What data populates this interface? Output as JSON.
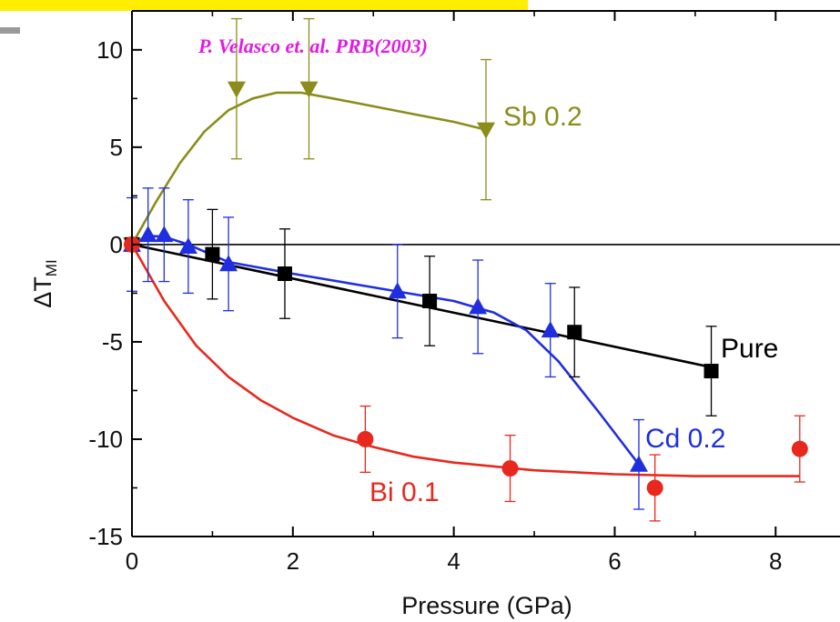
{
  "chart_data": {
    "type": "scatter",
    "citation": "P. Velasco et. al. PRB(2003)",
    "xlabel": "Pressure (GPa)",
    "ylabel_main": "ΔT",
    "ylabel_sub": "MI",
    "xlim": [
      0,
      8.8
    ],
    "ylim": [
      -15,
      12
    ],
    "xticks": [
      0,
      2,
      4,
      6,
      8
    ],
    "yticks": [
      10,
      5,
      0,
      -5,
      -10,
      -15
    ],
    "zero_line": true,
    "series": [
      {
        "name": "Sb 0.2",
        "color": "#8c8c1c",
        "marker": "triangle-down",
        "points": [
          {
            "x": 0.0,
            "y": 0.0,
            "err": 0
          },
          {
            "x": 1.3,
            "y": 8.0,
            "err": 3.6
          },
          {
            "x": 2.2,
            "y": 8.0,
            "err": 3.6
          },
          {
            "x": 4.4,
            "y": 5.9,
            "err": 3.6
          }
        ],
        "fit": [
          [
            0,
            0
          ],
          [
            0.3,
            2.2
          ],
          [
            0.6,
            4.2
          ],
          [
            0.9,
            5.8
          ],
          [
            1.2,
            6.9
          ],
          [
            1.5,
            7.5
          ],
          [
            1.8,
            7.8
          ],
          [
            2.1,
            7.8
          ],
          [
            2.5,
            7.5
          ],
          [
            3.0,
            7.1
          ],
          [
            3.5,
            6.7
          ],
          [
            4.0,
            6.3
          ],
          [
            4.4,
            5.9
          ]
        ]
      },
      {
        "name": "Pure",
        "color": "#000000",
        "marker": "square",
        "points": [
          {
            "x": 0.0,
            "y": 0.0,
            "err": 0
          },
          {
            "x": 1.0,
            "y": -0.5,
            "err": 2.3
          },
          {
            "x": 1.9,
            "y": -1.5,
            "err": 2.3
          },
          {
            "x": 3.7,
            "y": -2.9,
            "err": 2.3
          },
          {
            "x": 5.5,
            "y": -4.5,
            "err": 2.3
          },
          {
            "x": 7.2,
            "y": -6.5,
            "err": 2.3
          }
        ],
        "fit": [
          [
            0,
            0
          ],
          [
            7.2,
            -6.3
          ]
        ]
      },
      {
        "name": "Cd 0.2",
        "color": "#1f2fe0",
        "marker": "triangle-up",
        "points": [
          {
            "x": 0.0,
            "y": 0.0,
            "err": 2.4
          },
          {
            "x": 0.2,
            "y": 0.5,
            "err": 2.4
          },
          {
            "x": 0.4,
            "y": 0.5,
            "err": 2.4
          },
          {
            "x": 0.7,
            "y": -0.1,
            "err": 2.4
          },
          {
            "x": 1.2,
            "y": -1.0,
            "err": 2.4
          },
          {
            "x": 3.3,
            "y": -2.4,
            "err": 2.4
          },
          {
            "x": 4.3,
            "y": -3.2,
            "err": 2.4
          },
          {
            "x": 5.2,
            "y": -4.4,
            "err": 2.4
          },
          {
            "x": 6.3,
            "y": -11.3,
            "err": 2.3
          }
        ],
        "fit": [
          [
            0,
            0
          ],
          [
            0.2,
            0.45
          ],
          [
            0.4,
            0.4
          ],
          [
            0.7,
            0
          ],
          [
            1.2,
            -0.9
          ],
          [
            2.0,
            -1.5
          ],
          [
            3.0,
            -2.2
          ],
          [
            4.0,
            -2.9
          ],
          [
            4.5,
            -3.5
          ],
          [
            4.9,
            -4.4
          ],
          [
            5.3,
            -6.0
          ],
          [
            5.8,
            -8.6
          ],
          [
            6.3,
            -11.3
          ]
        ]
      },
      {
        "name": "Bi 0.1",
        "color": "#e8281c",
        "marker": "circle",
        "points": [
          {
            "x": 0.0,
            "y": 0.0,
            "err": 0
          },
          {
            "x": 2.9,
            "y": -10.0,
            "err": 1.7
          },
          {
            "x": 4.7,
            "y": -11.5,
            "err": 1.7
          },
          {
            "x": 6.5,
            "y": -12.5,
            "err": 1.7
          },
          {
            "x": 8.3,
            "y": -10.5,
            "err": 1.7
          }
        ],
        "fit": [
          [
            0,
            0
          ],
          [
            0.4,
            -2.9
          ],
          [
            0.8,
            -5.2
          ],
          [
            1.2,
            -6.8
          ],
          [
            1.6,
            -8.0
          ],
          [
            2.0,
            -8.9
          ],
          [
            2.5,
            -9.8
          ],
          [
            3.0,
            -10.4
          ],
          [
            3.5,
            -10.9
          ],
          [
            4.0,
            -11.2
          ],
          [
            5.0,
            -11.6
          ],
          [
            6.0,
            -11.8
          ],
          [
            7.0,
            -11.9
          ],
          [
            8.3,
            -11.9
          ]
        ]
      }
    ]
  }
}
